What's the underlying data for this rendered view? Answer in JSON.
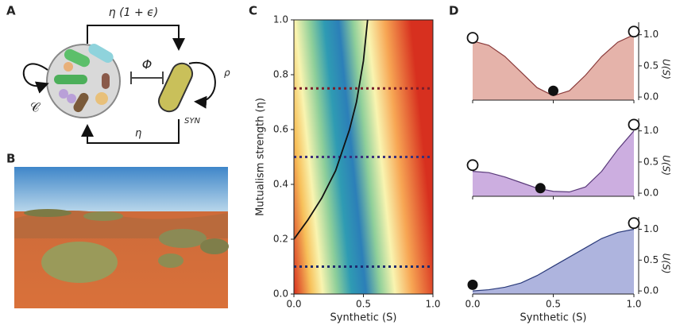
{
  "panels": {
    "a": "A",
    "b": "B",
    "c": "C",
    "d": "D"
  },
  "diagram": {
    "top_arrow": "η (1 + ϵ)",
    "inhibition": "Φ",
    "self_rate": "ρ",
    "community": "𝒞",
    "synthetic": "SYN",
    "bottom_arrow": "η"
  },
  "chart_data": [
    {
      "type": "heatmap-line",
      "xlabel": "Synthetic (S)",
      "ylabel": "Mutualism strength (η)",
      "xlim": [
        0,
        1
      ],
      "ylim": [
        0,
        1
      ],
      "xticks": [
        {
          "value": 0,
          "label": "0.0"
        },
        0.5,
        {
          "value": 1,
          "label": "1.0"
        }
      ],
      "yticks": [
        {
          "value": 0,
          "label": "0.0"
        },
        0.2,
        0.4,
        0.6,
        0.8,
        {
          "value": 1,
          "label": "1.0"
        }
      ],
      "hlines": [
        {
          "value": 0.75,
          "color": "#7a1f2b"
        },
        {
          "value": 0.5,
          "color": "#3b2f7a"
        },
        {
          "value": 0.1,
          "color": "#1f2a6e"
        }
      ],
      "series": [
        {
          "color": "#111111",
          "x": [
            0,
            0.1,
            0.2,
            0.3,
            0.4,
            0.45,
            0.5,
            0.53
          ],
          "values": [
            0.2,
            0.27,
            0.35,
            0.45,
            0.6,
            0.7,
            0.85,
            1.0
          ]
        }
      ]
    },
    {
      "type": "area",
      "ylabel": "U(S)",
      "xlim": [
        0,
        1
      ],
      "ylim": [
        -0.05,
        1.2
      ],
      "xticks": [
        0,
        0.5,
        1
      ],
      "show_xtick_labels": false,
      "yticks": [
        {
          "value": 0,
          "label": "0.0"
        },
        0.5,
        {
          "value": 1,
          "label": "1.0"
        }
      ],
      "color": "#8a3b3b",
      "fill": "#e5b3aa",
      "x": [
        0,
        0.1,
        0.2,
        0.3,
        0.4,
        0.5,
        0.6,
        0.7,
        0.8,
        0.9,
        1.0
      ],
      "values": [
        0.9,
        0.83,
        0.65,
        0.4,
        0.15,
        0.02,
        0.1,
        0.35,
        0.65,
        0.88,
        1.0
      ],
      "open_points": {
        "x": [
          0,
          1
        ],
        "y": [
          0.95,
          1.05
        ]
      },
      "filled_points": {
        "x": [
          0.5
        ],
        "y": [
          0.1
        ]
      }
    },
    {
      "type": "area",
      "ylabel": "U(S)",
      "xlim": [
        0,
        1
      ],
      "ylim": [
        -0.05,
        1.2
      ],
      "xticks": [
        0,
        0.5,
        1
      ],
      "show_xtick_labels": false,
      "yticks": [
        {
          "value": 0,
          "label": "0.0"
        },
        0.5,
        {
          "value": 1,
          "label": "1.0"
        }
      ],
      "color": "#5a3a7a",
      "fill": "#ccaee0",
      "x": [
        0,
        0.1,
        0.2,
        0.3,
        0.4,
        0.5,
        0.6,
        0.7,
        0.8,
        0.9,
        1.0
      ],
      "values": [
        0.35,
        0.33,
        0.26,
        0.17,
        0.08,
        0.03,
        0.02,
        0.1,
        0.35,
        0.7,
        1.0
      ],
      "open_points": {
        "x": [
          0,
          1
        ],
        "y": [
          0.45,
          1.1
        ]
      },
      "filled_points": {
        "x": [
          0.42
        ],
        "y": [
          0.08
        ]
      }
    },
    {
      "type": "area",
      "ylabel": "U(S)",
      "xlabel": "Synthetic (S)",
      "xlim": [
        0,
        1
      ],
      "ylim": [
        -0.05,
        1.2
      ],
      "xticks": [
        {
          "value": 0,
          "label": "0.0"
        },
        0.5,
        {
          "value": 1,
          "label": "1.0"
        }
      ],
      "show_xtick_labels": true,
      "yticks": [
        {
          "value": 0,
          "label": "0.0"
        },
        0.5,
        {
          "value": 1,
          "label": "1.0"
        }
      ],
      "color": "#2a3a7a",
      "fill": "#aeb4de",
      "x": [
        0,
        0.1,
        0.2,
        0.3,
        0.4,
        0.5,
        0.6,
        0.7,
        0.8,
        0.9,
        1.0
      ],
      "values": [
        0,
        0.02,
        0.06,
        0.13,
        0.25,
        0.4,
        0.55,
        0.7,
        0.85,
        0.95,
        1.0
      ],
      "open_points": {
        "x": [
          1
        ],
        "y": [
          1.1
        ]
      },
      "filled_points": {
        "x": [
          0
        ],
        "y": [
          0.1
        ]
      }
    }
  ]
}
